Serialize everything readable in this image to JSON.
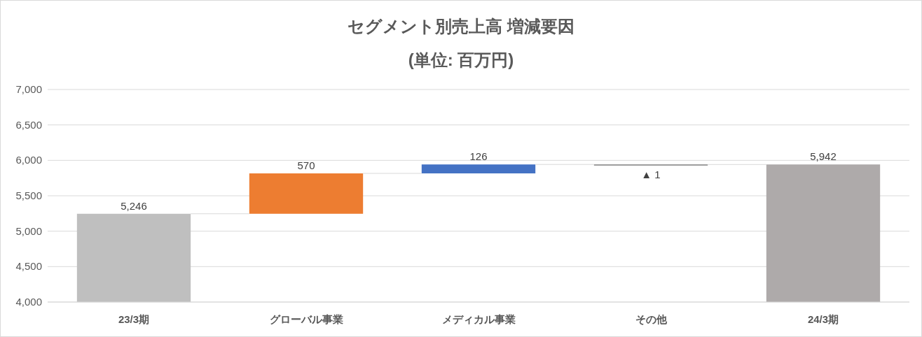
{
  "chart_data": {
    "type": "bar",
    "title": "セグメント別売上高 増減要因",
    "subtitle": "(単位: 百万円)",
    "categories": [
      "23/3期",
      "グローバル事業",
      "メディカル事業",
      "その他",
      "24/3期"
    ],
    "values": [
      5246,
      570,
      126,
      -1,
      5942
    ],
    "base": [
      0,
      5246,
      5816,
      5942,
      0
    ],
    "colors": [
      "#bfbfbf",
      "#ed7d31",
      "#4472c4",
      "#7f7f7f",
      "#aeaaaa"
    ],
    "value_labels": [
      "5,246",
      "570",
      "126",
      "▲ 1",
      "5,942"
    ],
    "ylim": [
      4000,
      7000
    ],
    "yticks": [
      {
        "value": 4000,
        "label": "4,000"
      },
      {
        "value": 4500,
        "label": "4,500"
      },
      {
        "value": 5000,
        "label": "5,000"
      },
      {
        "value": 5500,
        "label": "5,500"
      },
      {
        "value": 6000,
        "label": "6,000"
      },
      {
        "value": 6500,
        "label": "6,500"
      },
      {
        "value": 7000,
        "label": "7,000"
      }
    ],
    "grid": "y"
  }
}
